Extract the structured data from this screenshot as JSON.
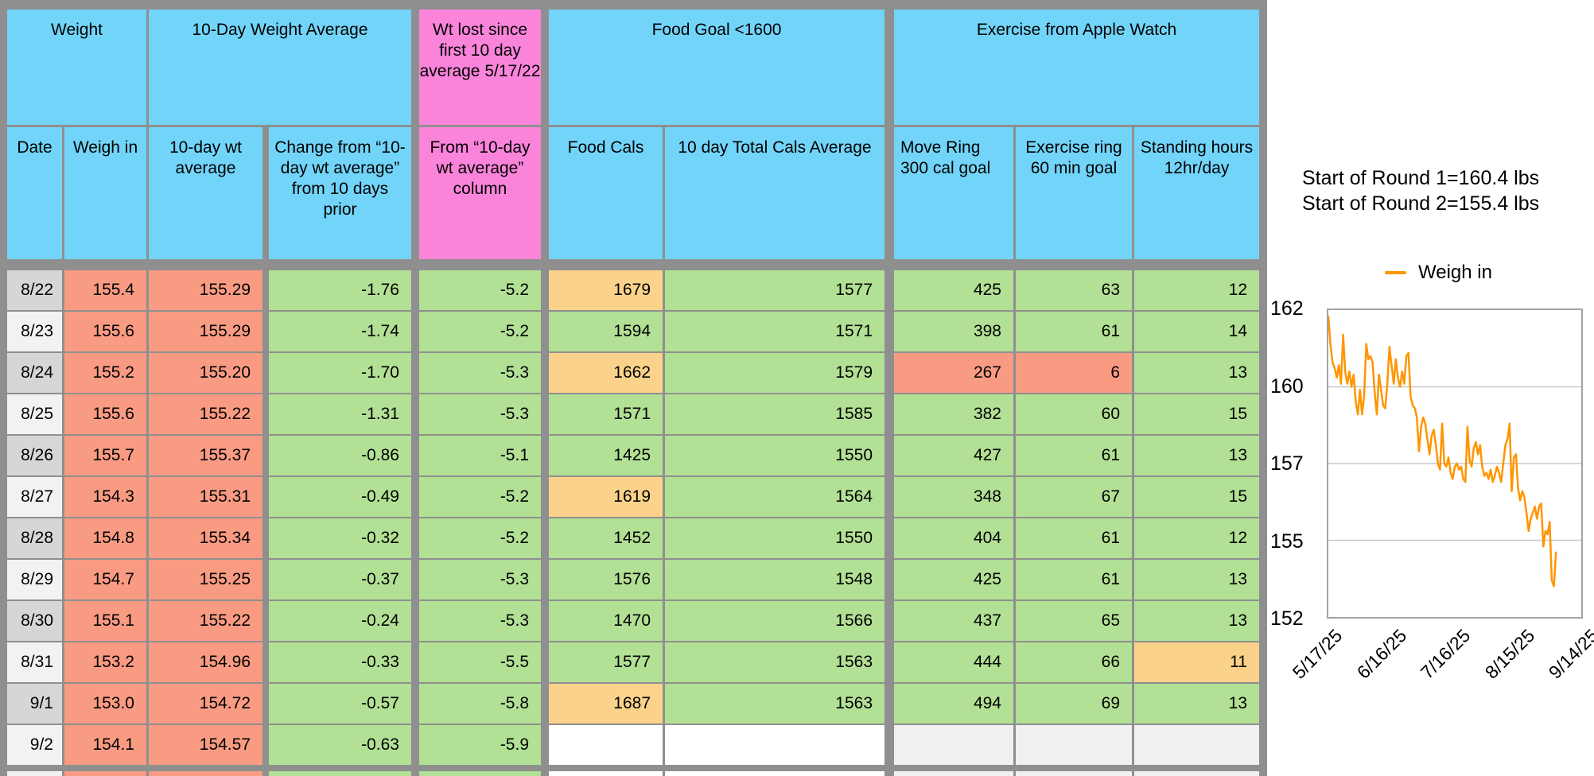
{
  "colors": {
    "header_blue": "#72D4F8",
    "header_pink": "#FB84DB",
    "salmon": "#F99B83",
    "green": "#B2E095",
    "orange": "#FBD28B",
    "white": "#FFFFFF",
    "empty_gray": "#F0F0F0",
    "date_dark": "#D6D6D6",
    "date_light": "#F2F2F2",
    "grid_border": "#8F8F8F",
    "chart_line": "#FF9500",
    "chart_grid": "#C8C8C8"
  },
  "table": {
    "groups": [
      {
        "label": "Weight"
      },
      {
        "label": "10-Day Weight Average"
      },
      {
        "label": "Wt lost since first 10 day average 5/17/22"
      },
      {
        "label": "Food Goal <1600"
      },
      {
        "label": "Exercise from Apple Watch"
      }
    ],
    "columns": [
      {
        "label": "Date"
      },
      {
        "label": "Weigh in"
      },
      {
        "label": "10-day wt average"
      },
      {
        "label": "Change from “10-day wt average” from 10 days prior"
      },
      {
        "label": "From “10-day wt average” column"
      },
      {
        "label": "Food Cals"
      },
      {
        "label": "10 day Total Cals Average"
      },
      {
        "label": "Move Ring 300 cal goal"
      },
      {
        "label": "Exercise ring 60 min goal"
      },
      {
        "label": "Standing hours 12hr/day"
      }
    ],
    "rows": [
      {
        "date": "8/22",
        "cells": [
          "155.4",
          "155.29",
          "-1.76",
          "-5.2",
          "1679",
          "1577",
          "425",
          "63",
          "12"
        ],
        "bg": [
          "salmon",
          "salmon",
          "green",
          "green",
          "orange",
          "green",
          "green",
          "green",
          "green"
        ]
      },
      {
        "date": "8/23",
        "cells": [
          "155.6",
          "155.29",
          "-1.74",
          "-5.2",
          "1594",
          "1571",
          "398",
          "61",
          "14"
        ],
        "bg": [
          "salmon",
          "salmon",
          "green",
          "green",
          "green",
          "green",
          "green",
          "green",
          "green"
        ]
      },
      {
        "date": "8/24",
        "cells": [
          "155.2",
          "155.20",
          "-1.70",
          "-5.3",
          "1662",
          "1579",
          "267",
          "6",
          "13"
        ],
        "bg": [
          "salmon",
          "salmon",
          "green",
          "green",
          "orange",
          "green",
          "salmon",
          "salmon",
          "green"
        ]
      },
      {
        "date": "8/25",
        "cells": [
          "155.6",
          "155.22",
          "-1.31",
          "-5.3",
          "1571",
          "1585",
          "382",
          "60",
          "15"
        ],
        "bg": [
          "salmon",
          "salmon",
          "green",
          "green",
          "green",
          "green",
          "green",
          "green",
          "green"
        ]
      },
      {
        "date": "8/26",
        "cells": [
          "155.7",
          "155.37",
          "-0.86",
          "-5.1",
          "1425",
          "1550",
          "427",
          "61",
          "13"
        ],
        "bg": [
          "salmon",
          "salmon",
          "green",
          "green",
          "green",
          "green",
          "green",
          "green",
          "green"
        ]
      },
      {
        "date": "8/27",
        "cells": [
          "154.3",
          "155.31",
          "-0.49",
          "-5.2",
          "1619",
          "1564",
          "348",
          "67",
          "15"
        ],
        "bg": [
          "salmon",
          "salmon",
          "green",
          "green",
          "orange",
          "green",
          "green",
          "green",
          "green"
        ]
      },
      {
        "date": "8/28",
        "cells": [
          "154.8",
          "155.34",
          "-0.32",
          "-5.2",
          "1452",
          "1550",
          "404",
          "61",
          "12"
        ],
        "bg": [
          "salmon",
          "salmon",
          "green",
          "green",
          "green",
          "green",
          "green",
          "green",
          "green"
        ]
      },
      {
        "date": "8/29",
        "cells": [
          "154.7",
          "155.25",
          "-0.37",
          "-5.3",
          "1576",
          "1548",
          "425",
          "61",
          "13"
        ],
        "bg": [
          "salmon",
          "salmon",
          "green",
          "green",
          "green",
          "green",
          "green",
          "green",
          "green"
        ]
      },
      {
        "date": "8/30",
        "cells": [
          "155.1",
          "155.22",
          "-0.24",
          "-5.3",
          "1470",
          "1566",
          "437",
          "65",
          "13"
        ],
        "bg": [
          "salmon",
          "salmon",
          "green",
          "green",
          "green",
          "green",
          "green",
          "green",
          "green"
        ]
      },
      {
        "date": "8/31",
        "cells": [
          "153.2",
          "154.96",
          "-0.33",
          "-5.5",
          "1577",
          "1563",
          "444",
          "66",
          "11"
        ],
        "bg": [
          "salmon",
          "salmon",
          "green",
          "green",
          "green",
          "green",
          "green",
          "green",
          "orange"
        ]
      },
      {
        "date": "9/1",
        "cells": [
          "153.0",
          "154.72",
          "-0.57",
          "-5.8",
          "1687",
          "1563",
          "494",
          "69",
          "13"
        ],
        "bg": [
          "salmon",
          "salmon",
          "green",
          "green",
          "orange",
          "green",
          "green",
          "green",
          "green"
        ]
      },
      {
        "date": "9/2",
        "cells": [
          "154.1",
          "154.57",
          "-0.63",
          "-5.9",
          "",
          "",
          "",
          "",
          ""
        ],
        "bg": [
          "salmon",
          "salmon",
          "green",
          "green",
          "white",
          "white",
          "empty_gray",
          "empty_gray",
          "empty_gray"
        ]
      }
    ]
  },
  "annotation": {
    "line1": "Start of Round 1=160.4 lbs",
    "line2": "Start of Round 2=155.4 lbs"
  },
  "chart_data": {
    "type": "line",
    "legend": "Weigh in",
    "y_ticks": [
      162,
      160,
      157,
      155,
      152
    ],
    "y_range": [
      152,
      162
    ],
    "x_ticks": [
      "5/17/25",
      "6/16/25",
      "7/16/25",
      "8/15/25",
      "9/14/25"
    ],
    "x_axis_total_days": 120,
    "grid": true,
    "series": [
      {
        "name": "Weigh in",
        "start_date": "5/17/25",
        "end_date": "9/2/25",
        "cadence_days": 1,
        "values": [
          161.8,
          160.9,
          160.3,
          160.1,
          159.8,
          160.2,
          159.6,
          161.2,
          160.0,
          159.6,
          160.0,
          159.5,
          159.9,
          159.0,
          158.6,
          159.4,
          158.6,
          159.2,
          160.9,
          160.4,
          160.5,
          160.3,
          159.3,
          158.6,
          159.9,
          159.4,
          158.9,
          158.8,
          159.6,
          160.8,
          160.2,
          159.6,
          160.4,
          159.8,
          159.5,
          160.0,
          159.6,
          160.5,
          160.6,
          159.2,
          158.9,
          158.8,
          158.5,
          157.4,
          158.2,
          158.5,
          158.3,
          157.8,
          157.3,
          157.9,
          158.1,
          157.6,
          157.0,
          156.8,
          158.3,
          157.0,
          156.9,
          157.2,
          156.7,
          156.5,
          156.9,
          157.0,
          156.8,
          156.9,
          156.5,
          156.4,
          158.2,
          157.1,
          156.9,
          157.5,
          157.7,
          157.3,
          157.6,
          156.9,
          156.6,
          156.7,
          156.5,
          156.8,
          156.4,
          156.6,
          156.9,
          156.7,
          156.4,
          157.0,
          157.6,
          157.8,
          158.3,
          156.1,
          157.2,
          157.3,
          156.2,
          155.8,
          156.1,
          155.9,
          155.4,
          154.8,
          155.2,
          155.4,
          155.6,
          155.2,
          155.6,
          155.7,
          154.3,
          154.8,
          154.7,
          155.1,
          153.2,
          153.0,
          154.1
        ]
      }
    ]
  }
}
